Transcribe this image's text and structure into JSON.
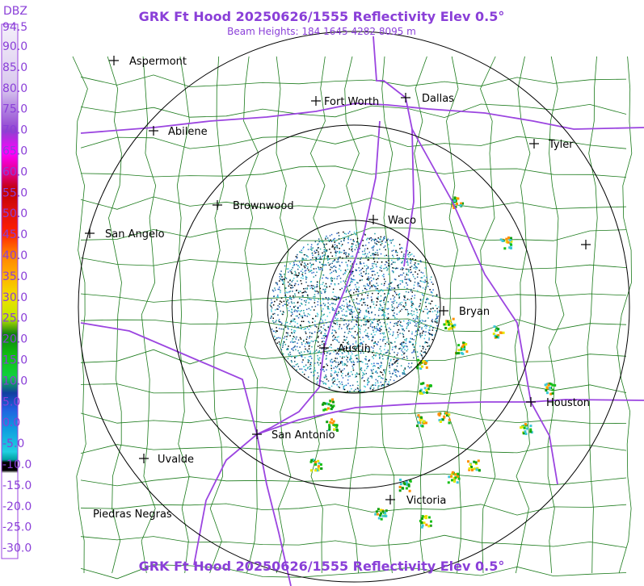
{
  "header": {
    "title": "GRK Ft Hood 20250626/1555 Reflectivity Elev 0.5°",
    "subtitle": "Beam Heights: 184 1645 4282 8095 m"
  },
  "footer": {
    "title": "GRK Ft Hood 20250626/1555 Reflectivity Elev 0.5°"
  },
  "legend": {
    "unit": "DBZ",
    "labels": [
      "94.5",
      "90.0",
      "85.0",
      "80.0",
      "75.0",
      "70.0",
      "65.0",
      "60.0",
      "55.0",
      "50.0",
      "45.0",
      "40.0",
      "35.0",
      "30.0",
      "25.0",
      "20.0",
      "15.0",
      "10.0",
      "5.0",
      "0.0",
      "-5.0",
      "-10.0",
      "-15.0",
      "-20.0",
      "-25.0",
      "-30.0"
    ]
  },
  "cities": [
    {
      "name": "Aspermont"
    },
    {
      "name": "Fort Worth"
    },
    {
      "name": "Dallas"
    },
    {
      "name": "Abilene"
    },
    {
      "name": "Tyler"
    },
    {
      "name": "Brownwood"
    },
    {
      "name": "Waco"
    },
    {
      "name": "San Angelo"
    },
    {
      "name": "Bryan"
    },
    {
      "name": "Austin"
    },
    {
      "name": "Houston"
    },
    {
      "name": "San Antonio"
    },
    {
      "name": "Uvalde"
    },
    {
      "name": "Victoria"
    },
    {
      "name": "Piedras Negras"
    }
  ]
}
